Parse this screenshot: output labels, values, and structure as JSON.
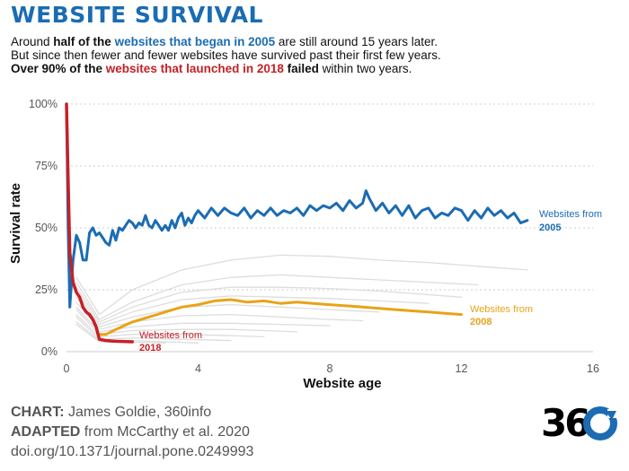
{
  "header": {
    "title": "WEBSITE SURVIVAL",
    "line1": {
      "a": "Around ",
      "b": "half of the",
      "c": " ",
      "d": "websites that began in 2005",
      "e": " are still around 15 years later."
    },
    "line2": "But since then fewer and fewer websites have survived past their first few years.",
    "line3": {
      "a": "Over 90% of the ",
      "b": "websites that launched in 2018",
      "c": " failed",
      "d": " within two years."
    }
  },
  "chart_data": {
    "type": "line",
    "xlabel": "Website age",
    "ylabel": "Survival rate",
    "xlim": [
      0,
      16
    ],
    "ylim": [
      0,
      100
    ],
    "x_ticks": [
      "0",
      "4",
      "8",
      "12",
      "16"
    ],
    "y_ticks": [
      "0%",
      "25%",
      "50%",
      "75%",
      "100%"
    ],
    "grid": true,
    "colors": {
      "2005": "#1b6cb2",
      "2008": "#e8a317",
      "2018": "#c42127",
      "other": "#dddddd",
      "grid": "#cccccc"
    },
    "labels": {
      "2005": {
        "line1": "Websites from",
        "line2": "2005"
      },
      "2008": {
        "line1": "Websites from",
        "line2": "2008"
      },
      "2018": {
        "line1": "Websites from",
        "line2": "2018"
      }
    },
    "series": [
      {
        "key": "2005",
        "highlight": true,
        "points": [
          [
            0,
            100
          ],
          [
            0.05,
            50
          ],
          [
            0.1,
            18
          ],
          [
            0.2,
            37
          ],
          [
            0.3,
            47
          ],
          [
            0.4,
            44
          ],
          [
            0.5,
            37
          ],
          [
            0.6,
            37
          ],
          [
            0.7,
            48
          ],
          [
            0.8,
            50
          ],
          [
            0.9,
            47
          ],
          [
            1.0,
            48
          ],
          [
            1.1,
            46
          ],
          [
            1.2,
            44
          ],
          [
            1.3,
            43
          ],
          [
            1.4,
            49
          ],
          [
            1.5,
            45
          ],
          [
            1.6,
            50
          ],
          [
            1.7,
            49
          ],
          [
            1.8,
            51
          ],
          [
            1.9,
            53
          ],
          [
            2.0,
            52
          ],
          [
            2.1,
            50
          ],
          [
            2.2,
            52
          ],
          [
            2.3,
            51
          ],
          [
            2.4,
            55
          ],
          [
            2.5,
            51
          ],
          [
            2.6,
            50
          ],
          [
            2.7,
            53
          ],
          [
            2.8,
            51
          ],
          [
            2.9,
            49
          ],
          [
            3.0,
            51
          ],
          [
            3.1,
            49
          ],
          [
            3.2,
            53
          ],
          [
            3.3,
            50
          ],
          [
            3.4,
            54
          ],
          [
            3.5,
            56
          ],
          [
            3.6,
            51
          ],
          [
            3.7,
            54
          ],
          [
            3.8,
            52
          ],
          [
            3.9,
            55
          ],
          [
            4.0,
            57
          ],
          [
            4.2,
            54
          ],
          [
            4.4,
            58
          ],
          [
            4.6,
            55
          ],
          [
            4.8,
            58
          ],
          [
            5.0,
            56
          ],
          [
            5.2,
            55
          ],
          [
            5.4,
            58
          ],
          [
            5.6,
            54
          ],
          [
            5.8,
            57
          ],
          [
            6.0,
            55
          ],
          [
            6.2,
            58
          ],
          [
            6.4,
            55
          ],
          [
            6.6,
            57
          ],
          [
            6.8,
            56
          ],
          [
            7.0,
            58
          ],
          [
            7.2,
            55
          ],
          [
            7.4,
            59
          ],
          [
            7.6,
            57
          ],
          [
            7.8,
            59
          ],
          [
            8.0,
            58
          ],
          [
            8.2,
            60
          ],
          [
            8.4,
            57
          ],
          [
            8.6,
            61
          ],
          [
            8.8,
            58
          ],
          [
            9.0,
            60
          ],
          [
            9.1,
            65
          ],
          [
            9.2,
            62
          ],
          [
            9.4,
            57
          ],
          [
            9.6,
            60
          ],
          [
            9.8,
            56
          ],
          [
            10.0,
            59
          ],
          [
            10.2,
            55
          ],
          [
            10.4,
            59
          ],
          [
            10.6,
            54
          ],
          [
            10.8,
            57
          ],
          [
            11.0,
            58
          ],
          [
            11.2,
            54
          ],
          [
            11.4,
            56
          ],
          [
            11.6,
            55
          ],
          [
            11.8,
            58
          ],
          [
            12.0,
            57
          ],
          [
            12.2,
            53
          ],
          [
            12.4,
            57
          ],
          [
            12.6,
            54
          ],
          [
            12.8,
            58
          ],
          [
            13.0,
            55
          ],
          [
            13.2,
            57
          ],
          [
            13.4,
            54
          ],
          [
            13.6,
            56
          ],
          [
            13.8,
            52
          ],
          [
            14.0,
            53
          ]
        ]
      },
      {
        "key": "2008",
        "highlight": true,
        "points": [
          [
            1.0,
            7
          ],
          [
            1.2,
            7
          ],
          [
            1.5,
            9
          ],
          [
            2.0,
            12
          ],
          [
            2.5,
            14
          ],
          [
            3.0,
            16
          ],
          [
            3.5,
            18
          ],
          [
            4.0,
            19
          ],
          [
            4.5,
            20.5
          ],
          [
            5.0,
            21
          ],
          [
            5.5,
            20
          ],
          [
            6.0,
            20.5
          ],
          [
            6.5,
            19.5
          ],
          [
            7.0,
            20
          ],
          [
            7.5,
            19.5
          ],
          [
            8.0,
            19
          ],
          [
            8.5,
            18.5
          ],
          [
            9.0,
            18
          ],
          [
            9.5,
            17.5
          ],
          [
            10.0,
            17
          ],
          [
            10.5,
            16.5
          ],
          [
            11.0,
            16
          ],
          [
            11.5,
            15.5
          ],
          [
            12.0,
            15
          ]
        ]
      },
      {
        "key": "2018",
        "highlight": true,
        "points": [
          [
            0,
            100
          ],
          [
            0.05,
            70
          ],
          [
            0.1,
            40
          ],
          [
            0.2,
            28
          ],
          [
            0.3,
            24
          ],
          [
            0.4,
            22
          ],
          [
            0.5,
            18
          ],
          [
            0.6,
            16
          ],
          [
            0.7,
            15
          ],
          [
            0.8,
            13
          ],
          [
            0.9,
            10
          ],
          [
            1.0,
            5
          ],
          [
            1.2,
            4.5
          ],
          [
            1.5,
            4.2
          ],
          [
            2.0,
            4
          ]
        ]
      },
      {
        "key": "other",
        "points": [
          [
            0.3,
            30
          ],
          [
            1.0,
            15
          ],
          [
            2.0,
            25
          ],
          [
            3.5,
            33
          ],
          [
            5.0,
            37
          ],
          [
            6.5,
            39
          ],
          [
            8.0,
            38.5
          ],
          [
            9.5,
            37
          ],
          [
            11.0,
            36
          ],
          [
            12.5,
            34.5
          ],
          [
            14.0,
            33
          ]
        ]
      },
      {
        "key": "other",
        "points": [
          [
            0.3,
            28
          ],
          [
            1.0,
            13
          ],
          [
            2.0,
            20
          ],
          [
            3.5,
            27
          ],
          [
            5.0,
            30
          ],
          [
            6.5,
            31
          ],
          [
            8.0,
            30
          ],
          [
            9.5,
            29
          ],
          [
            11.0,
            28
          ],
          [
            12.5,
            27
          ]
        ]
      },
      {
        "key": "other",
        "points": [
          [
            0.3,
            26
          ],
          [
            1.0,
            12
          ],
          [
            2.0,
            18
          ],
          [
            3.5,
            24
          ],
          [
            5.0,
            26
          ],
          [
            6.5,
            26
          ],
          [
            8.0,
            25.5
          ],
          [
            9.5,
            24.5
          ],
          [
            11.0,
            23
          ],
          [
            12.0,
            22
          ]
        ]
      },
      {
        "key": "other",
        "points": [
          [
            0.3,
            24
          ],
          [
            1.0,
            11
          ],
          [
            2.0,
            16
          ],
          [
            3.5,
            21
          ],
          [
            5.0,
            22.5
          ],
          [
            6.5,
            22
          ],
          [
            8.0,
            21.5
          ],
          [
            9.5,
            20.5
          ],
          [
            11.0,
            19.5
          ]
        ]
      },
      {
        "key": "other",
        "points": [
          [
            0.3,
            22
          ],
          [
            1.0,
            10
          ],
          [
            2.0,
            14
          ],
          [
            3.5,
            18
          ],
          [
            5.0,
            19
          ],
          [
            6.5,
            18
          ],
          [
            8.0,
            17
          ],
          [
            9.5,
            16
          ]
        ]
      },
      {
        "key": "other",
        "points": [
          [
            0.3,
            20
          ],
          [
            1.0,
            9
          ],
          [
            2.0,
            12
          ],
          [
            3.5,
            14.5
          ],
          [
            5.0,
            15
          ],
          [
            6.5,
            14
          ],
          [
            8.0,
            13
          ],
          [
            9.0,
            12.5
          ]
        ]
      },
      {
        "key": "other",
        "points": [
          [
            0.3,
            18
          ],
          [
            1.0,
            8
          ],
          [
            2.0,
            10
          ],
          [
            3.5,
            11.5
          ],
          [
            5.0,
            11.5
          ],
          [
            6.5,
            11
          ],
          [
            8.0,
            10.5
          ]
        ]
      },
      {
        "key": "other",
        "points": [
          [
            0.3,
            17
          ],
          [
            1.0,
            7
          ],
          [
            2.0,
            8.5
          ],
          [
            3.5,
            9
          ],
          [
            5.0,
            9
          ],
          [
            6.0,
            8.5
          ],
          [
            7.0,
            8
          ]
        ]
      },
      {
        "key": "other",
        "points": [
          [
            0.3,
            15
          ],
          [
            1.0,
            6
          ],
          [
            2.0,
            7
          ],
          [
            3.5,
            7
          ],
          [
            5.0,
            6.5
          ],
          [
            6.0,
            6
          ]
        ]
      },
      {
        "key": "other",
        "points": [
          [
            0.3,
            14
          ],
          [
            1.0,
            5
          ],
          [
            2.0,
            5.5
          ],
          [
            3.5,
            5
          ],
          [
            5.0,
            4.5
          ]
        ]
      },
      {
        "key": "other",
        "points": [
          [
            0.3,
            12
          ],
          [
            1.0,
            4.5
          ],
          [
            2.0,
            4.5
          ],
          [
            3.0,
            4
          ],
          [
            4.0,
            3.5
          ]
        ]
      },
      {
        "key": "other",
        "points": [
          [
            0.3,
            11
          ],
          [
            1.0,
            4
          ],
          [
            2.0,
            3.8
          ],
          [
            3.0,
            3.5
          ]
        ]
      }
    ]
  },
  "footer": {
    "chart_label": "CHART:",
    "chart_value": " James Goldie, 360info",
    "adapted_label": "ADAPTED",
    "adapted_value": " from McCarthy et al. 2020",
    "doi": "doi.org/10.1371/journal.pone.0249993"
  },
  "logo": {
    "text": "360",
    "colors": {
      "digits": "#000000",
      "circle": "#1b6cb2"
    }
  }
}
